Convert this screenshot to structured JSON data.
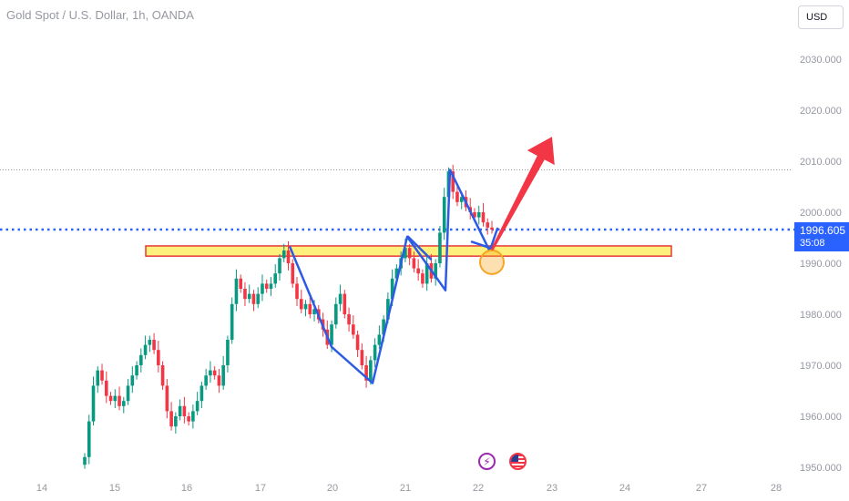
{
  "header": {
    "symbol_title": "Gold Spot / U.S. Dollar, 1h, OANDA",
    "currency": "USD"
  },
  "price_badge": {
    "price": "1996.605",
    "countdown": "35:08"
  },
  "events": [
    {
      "icon": "lightning-bolt-icon",
      "glyph": "⚡"
    },
    {
      "icon": "us-flag-icon"
    }
  ],
  "colors": {
    "up": "#089981",
    "down": "#f23645",
    "zigzag": "#2d5be3",
    "arrow": "#f23645",
    "zone_fill": "#fdf07c",
    "zone_border": "#e53935",
    "price_line": "#2962ff",
    "circle": "#f5a623"
  },
  "chart_data": {
    "type": "candlestick",
    "title": "Gold Spot / U.S. Dollar, 1h, OANDA",
    "ylim": [
      1948,
      2038
    ],
    "y_ticks": [
      "2030.000",
      "2020.000",
      "2010.000",
      "2000.000",
      "1990.000",
      "1980.000",
      "1970.000",
      "1960.000",
      "1950.000"
    ],
    "x_ticks": [
      "14",
      "15",
      "16",
      "17",
      "20",
      "21",
      "22",
      "23",
      "24",
      "27",
      "28"
    ],
    "last_price": 1996.605,
    "high_line": 2008.3,
    "support_zone": [
      1991.4,
      1993.4
    ],
    "series_closes": [
      1952,
      1959,
      1966,
      1969,
      1967,
      1964,
      1963,
      1964,
      1962,
      1963,
      1966,
      1968,
      1970,
      1972,
      1974,
      1975,
      1973,
      1970,
      1966,
      1961,
      1958,
      1960,
      1962,
      1960,
      1959,
      1961,
      1963,
      1966,
      1968,
      1969,
      1968,
      1966,
      1970,
      1975,
      1982,
      1987,
      1985,
      1983,
      1984,
      1982,
      1984,
      1986,
      1985,
      1986,
      1988,
      1991,
      1992.5,
      1990,
      1986,
      1983,
      1981,
      1982,
      1980,
      1981,
      1979,
      1977,
      1974,
      1978,
      1982,
      1984,
      1980,
      1978,
      1976,
      1973,
      1970,
      1967,
      1971,
      1974,
      1976,
      1979,
      1983,
      1987,
      1989,
      1991,
      1993,
      1991,
      1989,
      1988,
      1986,
      1990,
      1987,
      1990,
      1996,
      2003,
      2008,
      2004,
      2002,
      2003,
      2001,
      2000,
      1999,
      2000,
      1998,
      1997,
      1996.6
    ],
    "zigzag_pattern": [
      {
        "x": "Feb 19 (late)",
        "y": 1993.3
      },
      {
        "x": "Feb 20",
        "y": 1973.6
      },
      {
        "x": "Feb 20 (late)",
        "y": 1966.5
      },
      {
        "x": "Feb 21",
        "y": 1995.2
      },
      {
        "x": "Feb 21 (late)",
        "y": 1984.7
      },
      {
        "x": "Feb 21 (late)",
        "y": 2008.3
      },
      {
        "x": "Feb 22",
        "y": 1992.6
      }
    ],
    "target_arrow": {
      "from": 1992.6,
      "to": 2014.8
    }
  }
}
